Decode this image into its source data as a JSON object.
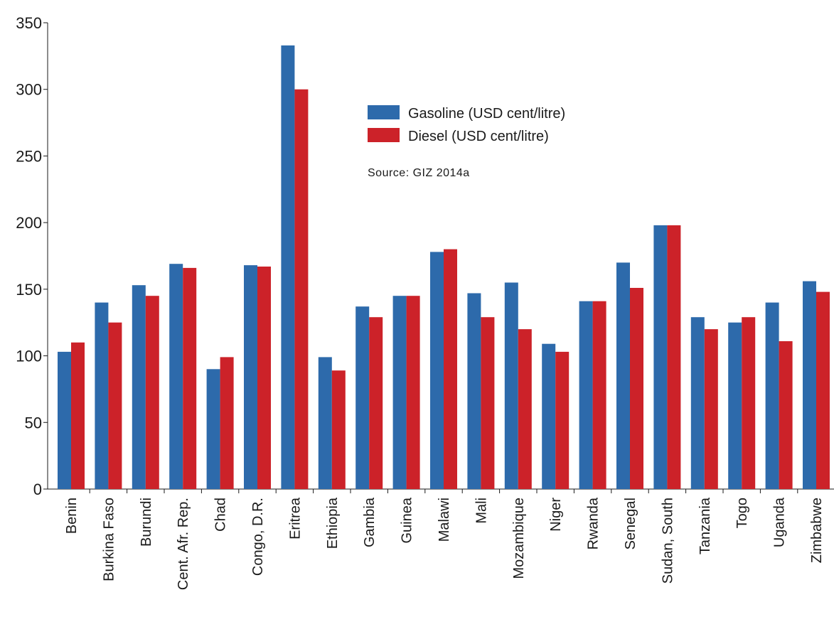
{
  "chart_data": {
    "type": "bar",
    "categories": [
      "Benin",
      "Burkina Faso",
      "Burundi",
      "Cent. Afr. Rep.",
      "Chad",
      "Congo, D.R.",
      "Eritrea",
      "Ethiopia",
      "Gambia",
      "Guinea",
      "Malawi",
      "Mali",
      "Mozambique",
      "Niger",
      "Rwanda",
      "Senegal",
      "Sudan, South",
      "Tanzania",
      "Togo",
      "Uganda",
      "Zimbabwe"
    ],
    "series": [
      {
        "name": "Gasoline (USD cent/litre)",
        "color": "#2d6aab",
        "values": [
          103,
          140,
          153,
          169,
          90,
          168,
          333,
          99,
          137,
          145,
          178,
          147,
          155,
          109,
          141,
          170,
          198,
          129,
          125,
          140,
          156
        ]
      },
      {
        "name": "Diesel (USD cent/litre)",
        "color": "#cc2229",
        "values": [
          110,
          125,
          145,
          166,
          99,
          167,
          300,
          89,
          129,
          145,
          180,
          129,
          120,
          103,
          141,
          151,
          198,
          120,
          129,
          111,
          148
        ]
      }
    ],
    "yticks": [
      0,
      50,
      100,
      150,
      200,
      250,
      300,
      350
    ],
    "ylim": [
      0,
      350
    ],
    "grid": false,
    "legend_position": "top-center",
    "annotation": "Source: GIZ 2014a"
  }
}
